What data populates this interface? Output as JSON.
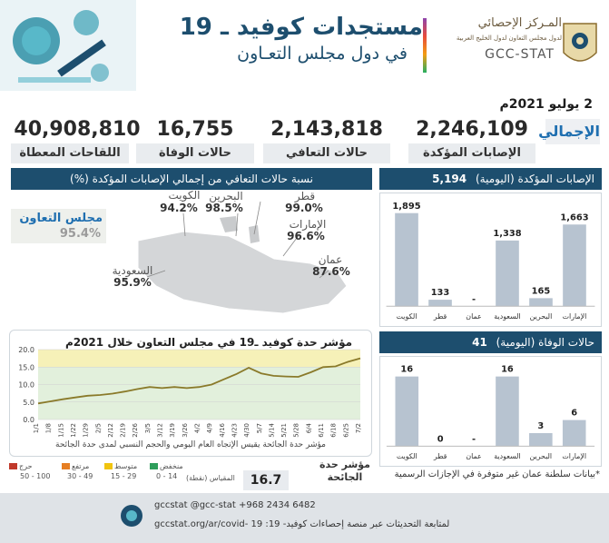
{
  "header": {
    "title": "مستجدات كوفيد ـ 19",
    "subtitle": "في دول مجلس التعـاون",
    "logo_ar": "المـركز الإحصائي",
    "logo_ar_sub": "لدول مجلس التعاون لدول الخليج العربية",
    "logo_en": "GCC-STAT"
  },
  "totals": {
    "date": "2 يوليو 2021م",
    "badge": "الإجمالي",
    "items": [
      {
        "label": "الإصابات المؤكدة",
        "value": "2,246,109"
      },
      {
        "label": "حالات التعافي",
        "value": "2,143,818"
      },
      {
        "label": "حالات الوفاة",
        "value": "16,755"
      },
      {
        "label": "اللقاحات المعطاة",
        "value": "40,908,810"
      }
    ]
  },
  "recovery": {
    "title": "نسبة حالات التعافي من إجمالي الإصابات المؤكدة (%)",
    "gcc_label": "مجلس التعاون",
    "gcc_value": "95.4%",
    "countries": [
      {
        "name": "الكويت",
        "value": "94.2%"
      },
      {
        "name": "البحرين",
        "value": "98.5%"
      },
      {
        "name": "قطر",
        "value": "99.0%"
      },
      {
        "name": "الإمارات",
        "value": "96.6%"
      },
      {
        "name": "عمان",
        "value": "87.6%"
      },
      {
        "name": "السعودية",
        "value": "95.9%"
      }
    ]
  },
  "chart_data": [
    {
      "type": "bar",
      "title": "الإصابات المؤكدة (اليومية)",
      "total": "5,194",
      "categories": [
        "الإمارات",
        "البحرين",
        "السعودية",
        "عمان",
        "قطر",
        "الكويت"
      ],
      "values": [
        1663,
        165,
        1338,
        null,
        133,
        1895
      ],
      "labels": [
        "1,663",
        "165",
        "1,338",
        "-",
        "133",
        "1,895"
      ],
      "color": "#b7c3d0"
    },
    {
      "type": "bar",
      "title": "حالات الوفاة (اليومية)",
      "total": "41",
      "categories": [
        "الإمارات",
        "البحرين",
        "السعودية",
        "عمان",
        "قطر",
        "الكويت"
      ],
      "values": [
        6,
        3,
        16,
        null,
        0,
        16
      ],
      "labels": [
        "6",
        "3",
        "16",
        "-",
        "0",
        "16"
      ],
      "color": "#b7c3d0"
    },
    {
      "type": "line",
      "title": "مؤشر حدة كوفيد ـ19 في مجلس التعاون خلال 2021م",
      "note": "مؤشر حدة الجائحة يقيس الإتجاه العام اليومي والحجم النسبي لمدى حدة الجائحة",
      "ylim": [
        0,
        20
      ],
      "yticks": [
        "20.0",
        "15.0",
        "10.0",
        "5.0",
        "0.0"
      ],
      "xticks": [
        "1/1",
        "1/8",
        "1/15",
        "1/22",
        "1/29",
        "2/5",
        "2/12",
        "2/19",
        "2/26",
        "3/5",
        "3/12",
        "3/19",
        "3/26",
        "4/2",
        "4/9",
        "4/16",
        "4/23",
        "4/30",
        "5/7",
        "5/14",
        "5/21",
        "5/28",
        "6/4",
        "6/11",
        "6/18",
        "6/25",
        "7/2"
      ],
      "values": [
        4.6,
        5.2,
        5.8,
        6.3,
        6.8,
        7.0,
        7.4,
        8.0,
        8.7,
        9.3,
        9.0,
        9.3,
        9.0,
        9.3,
        10.0,
        11.5,
        13.0,
        14.8,
        13.2,
        12.5,
        12.3,
        12.2,
        13.5,
        15.0,
        15.2,
        16.5,
        17.5
      ]
    }
  ],
  "severity": {
    "label": "مؤشر حدة الجائحة",
    "value": "16.7",
    "scale_label": "المقياس (نقطة)",
    "legend": [
      {
        "name": "حرج",
        "range": "50 - 100",
        "color": "#c0392b"
      },
      {
        "name": "مرتفع",
        "range": "30 - 49",
        "color": "#e67e22"
      },
      {
        "name": "متوسط",
        "range": "15 - 29",
        "color": "#f1c40f"
      },
      {
        "name": "منخفض",
        "range": "0 - 14",
        "color": "#2e9e5b"
      }
    ]
  },
  "notes": {
    "oman": "*بيانات سلطنة عمان غير متوفرة في الإجازات الرسمية"
  },
  "footer": {
    "social": "gccstat   @gcc-stat   +968 2434 6482",
    "text": "gccstat.org/ar/covid- 19  :لمتابعة التحديثات عبر منصة إحصاءات كوفيد- 19"
  }
}
